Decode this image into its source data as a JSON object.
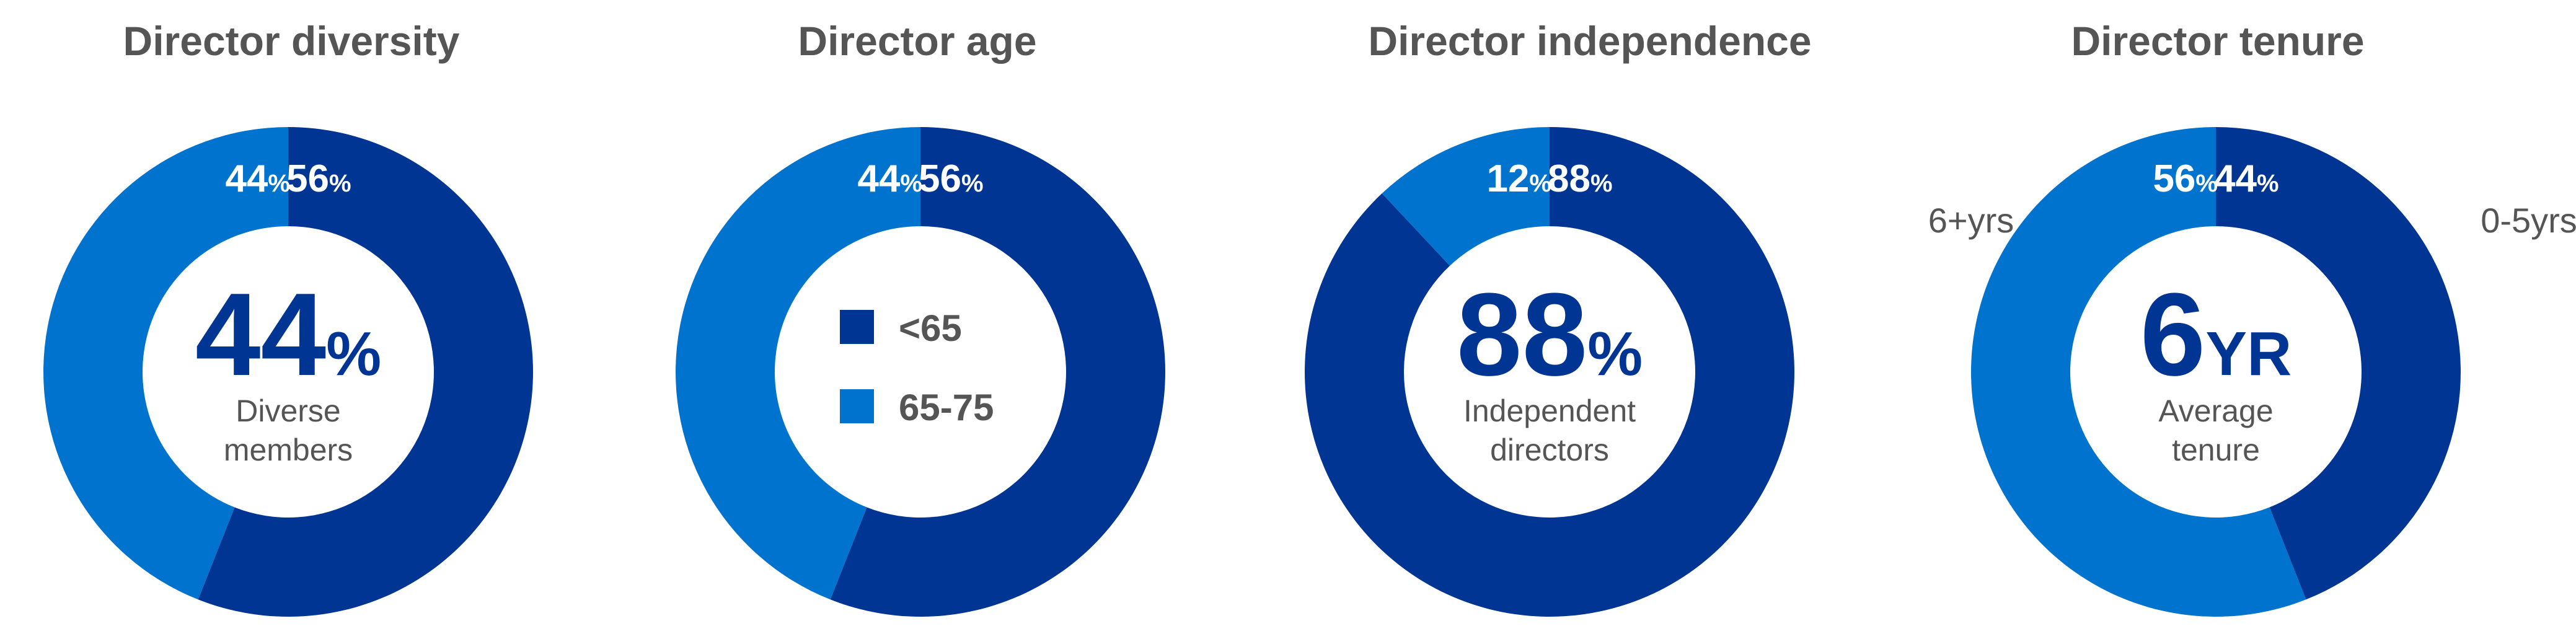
{
  "colors": {
    "primary": "#003594",
    "secondary": "#0073CF",
    "text": "#555555"
  },
  "chart_data": [
    {
      "type": "pie",
      "title": "Director diversity",
      "segments": [
        {
          "label": "56%",
          "value": 56,
          "color": "#003594"
        },
        {
          "label": "44%",
          "value": 44,
          "color": "#0073CF"
        }
      ],
      "center": {
        "value": "44",
        "suffix": "%",
        "caption": [
          "Diverse",
          "members"
        ]
      }
    },
    {
      "type": "pie",
      "title": "Director age",
      "segments": [
        {
          "label": "56%",
          "value": 56,
          "color": "#003594"
        },
        {
          "label": "44%",
          "value": 44,
          "color": "#0073CF"
        }
      ],
      "legend": [
        {
          "label": "<65",
          "color": "#003594"
        },
        {
          "label": "65-75",
          "color": "#0073CF"
        }
      ]
    },
    {
      "type": "pie",
      "title": "Director independence",
      "segments": [
        {
          "label": "88%",
          "value": 88,
          "color": "#003594"
        },
        {
          "label": "12%",
          "value": 12,
          "color": "#0073CF"
        }
      ],
      "center": {
        "value": "88",
        "suffix": "%",
        "caption": [
          "Independent",
          "directors"
        ]
      }
    },
    {
      "type": "pie",
      "title": "Director tenure",
      "segments": [
        {
          "label": "44%",
          "value": 44,
          "color": "#003594"
        },
        {
          "label": "56%",
          "value": 56,
          "color": "#0073CF"
        }
      ],
      "center": {
        "value": "6",
        "suffix": "YR",
        "caption": [
          "Average",
          "tenure"
        ]
      },
      "side_labels": {
        "right": "0-5yrs",
        "left": "6+yrs"
      }
    }
  ]
}
